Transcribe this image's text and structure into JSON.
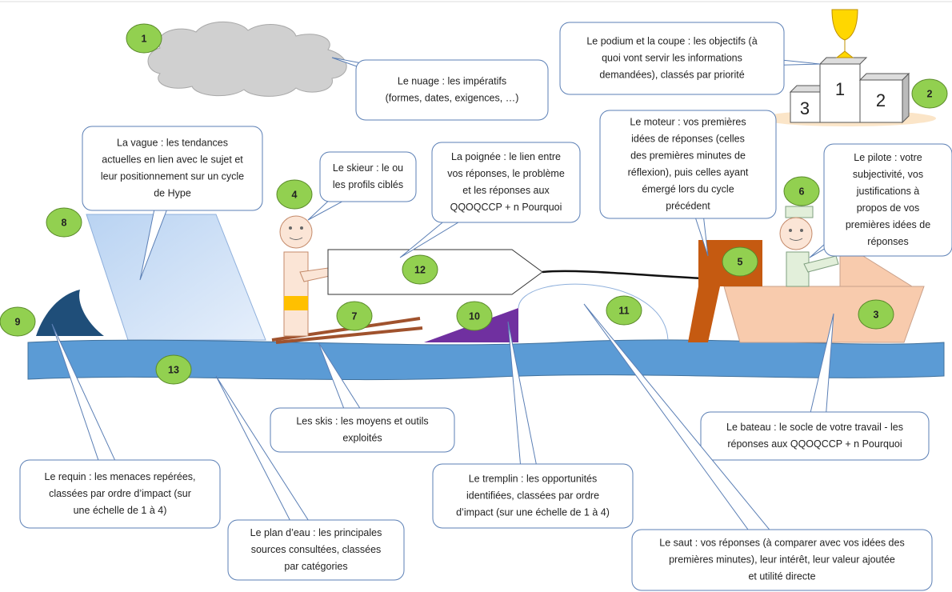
{
  "markers": [
    "1",
    "2",
    "3",
    "4",
    "5",
    "6",
    "7",
    "8",
    "9",
    "10",
    "11",
    "12",
    "13"
  ],
  "podium": [
    "3",
    "1",
    "2"
  ],
  "callouts": [
    {
      "lines": [
        "Le nuage : les impératifs",
        "(formes, dates, exigences, …)"
      ]
    },
    {
      "lines": [
        "Le podium et la coupe : les objectifs (à",
        "quoi vont servir les informations",
        "demandées), classés par priorité"
      ]
    },
    {
      "lines": [
        "La vague : les tendances",
        "actuelles en lien avec le sujet et",
        "leur positionnement sur un cycle",
        "de Hype"
      ]
    },
    {
      "lines": [
        "Le skieur : le ou",
        "les profils ciblés"
      ]
    },
    {
      "lines": [
        "La poignée : le lien entre",
        "vos réponses, le problème",
        "et les réponses aux",
        "QQOQCCP + n Pourquoi"
      ]
    },
    {
      "lines": [
        "Le moteur : vos premières",
        "idées de réponses (celles",
        "des premières minutes de",
        "réflexion), puis celles ayant",
        "émergé lors du cycle",
        "précédent"
      ]
    },
    {
      "lines": [
        "Le pilote : votre",
        "subjectivité, vos",
        "justifications à",
        "propos de vos",
        "premières idées de",
        "réponses"
      ]
    },
    {
      "lines": [
        "Les skis : les moyens et outils",
        "exploités"
      ]
    },
    {
      "lines": [
        "Le bateau : le socle de votre travail - les",
        "réponses aux QQOQCCP + n Pourquoi"
      ]
    },
    {
      "lines": [
        "Le requin : les menaces repérées,",
        "classées par ordre d’impact (sur",
        "une échelle de 1 à 4)"
      ]
    },
    {
      "lines": [
        "Le tremplin : les opportunités",
        "identifiées, classées par ordre",
        "d’impact (sur une échelle de 1 à 4)"
      ]
    },
    {
      "lines": [
        "Le plan d’eau : les principales",
        "sources consultées, classées",
        "par catégories"
      ]
    },
    {
      "lines": [
        "Le saut : vos réponses (à comparer avec vos idées des",
        "premières minutes), leur intérêt, leur valeur ajoutée",
        "et utilité directe"
      ]
    }
  ]
}
